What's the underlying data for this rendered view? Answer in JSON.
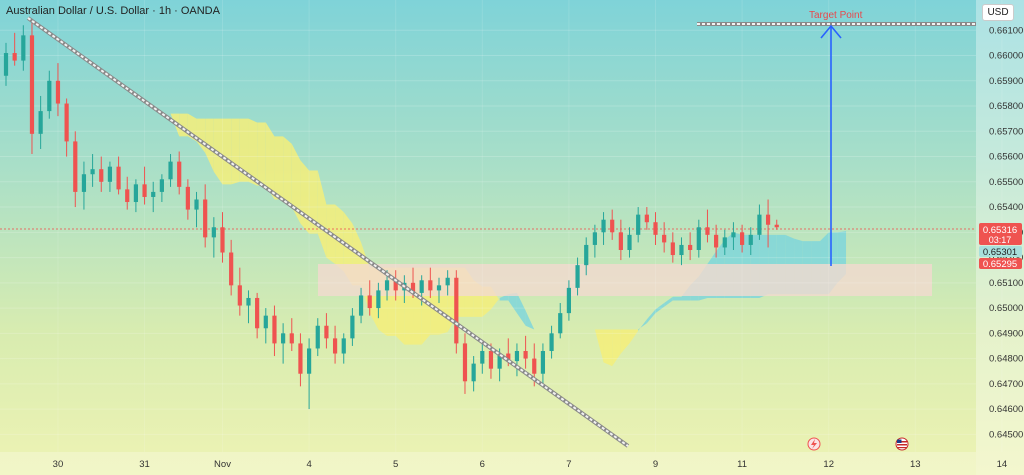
{
  "header": {
    "title": "Australian Dollar / U.S. Dollar · 1h · OANDA",
    "currency": "USD"
  },
  "colors": {
    "up": "#26a69a",
    "down": "#ef5350",
    "cloud_bull": "#7fd6db",
    "cloud_bear": "#f4ee7a",
    "zone": "#f3d9cf",
    "arrow": "#2962ff",
    "target_text": "#e8484c",
    "current_tag": "#ef5350"
  },
  "annotations": {
    "target_label": "Target Point",
    "target_price": 0.66125,
    "current_price": "0.65316",
    "countdown": "03:17",
    "level_a": "0.65301",
    "level_b": "0.65295"
  },
  "chart_data": {
    "type": "candlestick",
    "title": "Australian Dollar / U.S. Dollar · 1h · OANDA",
    "ylim": [
      0.6443,
      0.6622
    ],
    "y_ticks": [
      "0.66100",
      "0.66000",
      "0.65900",
      "0.65800",
      "0.65700",
      "0.65600",
      "0.65500",
      "0.65400",
      "0.65300",
      "0.65200",
      "0.65100",
      "0.65000",
      "0.64900",
      "0.64800",
      "0.64700",
      "0.64600",
      "0.64500"
    ],
    "x_ticks": [
      "30",
      "31",
      "Nov",
      "4",
      "5",
      "6",
      "7",
      "9",
      "11",
      "12",
      "13",
      "14"
    ],
    "x_tick_index": [
      6,
      16,
      25,
      35,
      45,
      55,
      65,
      75,
      85,
      95,
      105,
      115
    ],
    "candles": [
      [
        0.6592,
        0.6605,
        0.6588,
        0.6601
      ],
      [
        0.6601,
        0.6609,
        0.6596,
        0.6598
      ],
      [
        0.6598,
        0.6612,
        0.6594,
        0.6608
      ],
      [
        0.6608,
        0.6613,
        0.6561,
        0.6569
      ],
      [
        0.6569,
        0.6584,
        0.6563,
        0.6578
      ],
      [
        0.6578,
        0.6594,
        0.6575,
        0.659
      ],
      [
        0.659,
        0.6597,
        0.6576,
        0.6581
      ],
      [
        0.6581,
        0.6583,
        0.656,
        0.6566
      ],
      [
        0.6566,
        0.657,
        0.654,
        0.6546
      ],
      [
        0.6546,
        0.6558,
        0.6539,
        0.6553
      ],
      [
        0.6553,
        0.6561,
        0.6548,
        0.6555
      ],
      [
        0.6555,
        0.656,
        0.6546,
        0.655
      ],
      [
        0.655,
        0.6558,
        0.6546,
        0.6556
      ],
      [
        0.6556,
        0.656,
        0.6545,
        0.6547
      ],
      [
        0.6547,
        0.6552,
        0.6539,
        0.6542
      ],
      [
        0.6542,
        0.6551,
        0.6538,
        0.6549
      ],
      [
        0.6549,
        0.6556,
        0.6541,
        0.6544
      ],
      [
        0.6544,
        0.655,
        0.6538,
        0.6546
      ],
      [
        0.6546,
        0.6553,
        0.6542,
        0.6551
      ],
      [
        0.6551,
        0.6561,
        0.6548,
        0.6558
      ],
      [
        0.6558,
        0.6562,
        0.6545,
        0.6548
      ],
      [
        0.6548,
        0.6551,
        0.6535,
        0.6539
      ],
      [
        0.6539,
        0.6546,
        0.6532,
        0.6543
      ],
      [
        0.6543,
        0.6549,
        0.6524,
        0.6528
      ],
      [
        0.6528,
        0.6536,
        0.652,
        0.6532
      ],
      [
        0.6532,
        0.6538,
        0.6518,
        0.6522
      ],
      [
        0.6522,
        0.6527,
        0.6505,
        0.6509
      ],
      [
        0.6509,
        0.6516,
        0.6497,
        0.6501
      ],
      [
        0.6501,
        0.6507,
        0.6494,
        0.6504
      ],
      [
        0.6504,
        0.6506,
        0.6488,
        0.6492
      ],
      [
        0.6492,
        0.65,
        0.6486,
        0.6497
      ],
      [
        0.6497,
        0.6501,
        0.6481,
        0.6486
      ],
      [
        0.6486,
        0.6494,
        0.6478,
        0.649
      ],
      [
        0.649,
        0.6496,
        0.6483,
        0.6486
      ],
      [
        0.6486,
        0.649,
        0.6469,
        0.6474
      ],
      [
        0.6474,
        0.6488,
        0.646,
        0.6484
      ],
      [
        0.6484,
        0.6496,
        0.6481,
        0.6493
      ],
      [
        0.6493,
        0.6498,
        0.6484,
        0.6488
      ],
      [
        0.6488,
        0.6493,
        0.6478,
        0.6482
      ],
      [
        0.6482,
        0.649,
        0.6478,
        0.6488
      ],
      [
        0.6488,
        0.65,
        0.6485,
        0.6497
      ],
      [
        0.6497,
        0.6508,
        0.6494,
        0.6505
      ],
      [
        0.6505,
        0.6511,
        0.6497,
        0.65
      ],
      [
        0.65,
        0.651,
        0.6496,
        0.6507
      ],
      [
        0.6507,
        0.6515,
        0.6503,
        0.6511
      ],
      [
        0.6511,
        0.6515,
        0.6503,
        0.6507
      ],
      [
        0.6507,
        0.6513,
        0.6502,
        0.651
      ],
      [
        0.651,
        0.6516,
        0.6504,
        0.6506
      ],
      [
        0.6506,
        0.6513,
        0.6501,
        0.6511
      ],
      [
        0.6511,
        0.6516,
        0.6504,
        0.6507
      ],
      [
        0.6507,
        0.6512,
        0.6502,
        0.6509
      ],
      [
        0.6509,
        0.6515,
        0.6505,
        0.6512
      ],
      [
        0.6512,
        0.6515,
        0.6482,
        0.6486
      ],
      [
        0.6486,
        0.649,
        0.6466,
        0.6471
      ],
      [
        0.6471,
        0.6481,
        0.6467,
        0.6478
      ],
      [
        0.6478,
        0.6486,
        0.6474,
        0.6483
      ],
      [
        0.6483,
        0.6486,
        0.6472,
        0.6476
      ],
      [
        0.6476,
        0.6484,
        0.6471,
        0.6482
      ],
      [
        0.6482,
        0.6488,
        0.6477,
        0.6479
      ],
      [
        0.6479,
        0.6486,
        0.6473,
        0.6483
      ],
      [
        0.6483,
        0.6489,
        0.6476,
        0.648
      ],
      [
        0.648,
        0.6486,
        0.6469,
        0.6474
      ],
      [
        0.6474,
        0.6486,
        0.647,
        0.6483
      ],
      [
        0.6483,
        0.6493,
        0.648,
        0.649
      ],
      [
        0.649,
        0.6502,
        0.6488,
        0.6498
      ],
      [
        0.6498,
        0.6511,
        0.6495,
        0.6508
      ],
      [
        0.6508,
        0.652,
        0.6505,
        0.6517
      ],
      [
        0.6517,
        0.6528,
        0.6513,
        0.6525
      ],
      [
        0.6525,
        0.6533,
        0.652,
        0.653
      ],
      [
        0.653,
        0.6538,
        0.6525,
        0.6535
      ],
      [
        0.6535,
        0.6539,
        0.6527,
        0.653
      ],
      [
        0.653,
        0.6535,
        0.6519,
        0.6523
      ],
      [
        0.6523,
        0.6532,
        0.652,
        0.6529
      ],
      [
        0.6529,
        0.654,
        0.6526,
        0.6537
      ],
      [
        0.6537,
        0.654,
        0.6531,
        0.6534
      ],
      [
        0.6534,
        0.6538,
        0.6525,
        0.6529
      ],
      [
        0.6529,
        0.6534,
        0.6522,
        0.6526
      ],
      [
        0.6526,
        0.653,
        0.6518,
        0.6521
      ],
      [
        0.6521,
        0.6528,
        0.6517,
        0.6525
      ],
      [
        0.6525,
        0.653,
        0.6519,
        0.6523
      ],
      [
        0.6523,
        0.6535,
        0.652,
        0.6532
      ],
      [
        0.6532,
        0.6539,
        0.6526,
        0.6529
      ],
      [
        0.6529,
        0.6533,
        0.652,
        0.6524
      ],
      [
        0.6524,
        0.6531,
        0.6521,
        0.6528
      ],
      [
        0.6528,
        0.6534,
        0.6523,
        0.653
      ],
      [
        0.653,
        0.6533,
        0.6522,
        0.6525
      ],
      [
        0.6525,
        0.6532,
        0.6521,
        0.6529
      ],
      [
        0.6529,
        0.6541,
        0.6527,
        0.6537
      ],
      [
        0.6537,
        0.6543,
        0.6524,
        0.6533
      ],
      [
        0.6533,
        0.6535,
        0.6531,
        0.6532
      ]
    ],
    "annotations": [
      "Target Point"
    ]
  }
}
